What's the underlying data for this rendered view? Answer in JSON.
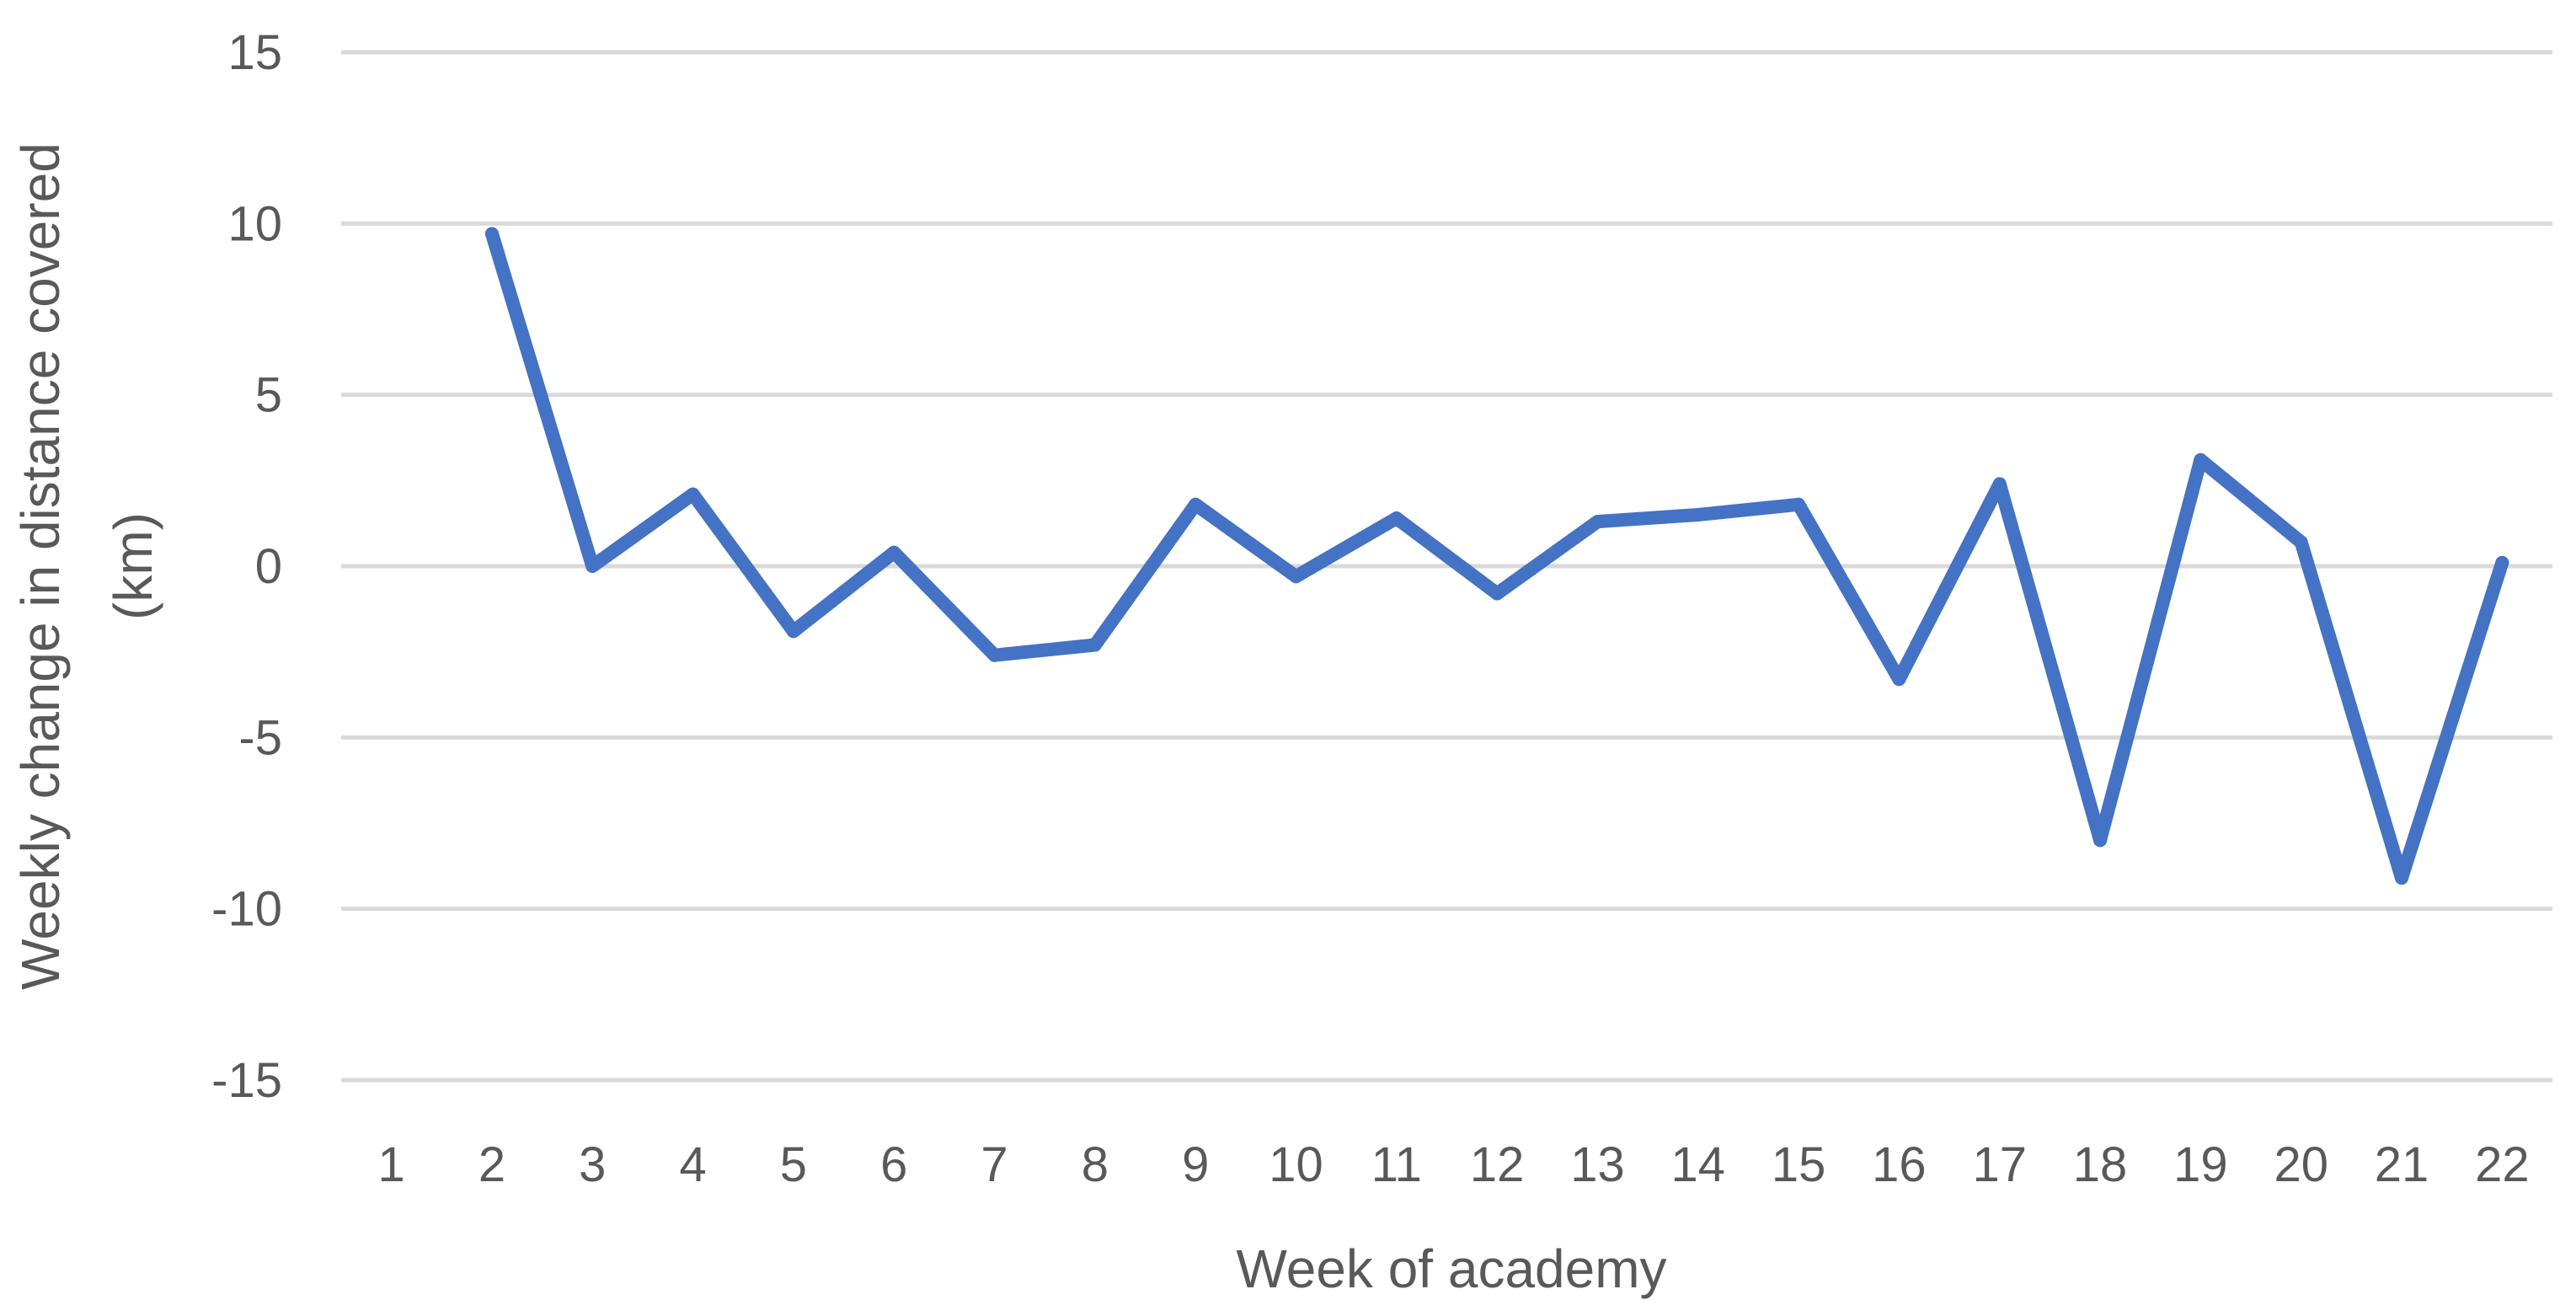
{
  "chart_data": {
    "type": "line",
    "title": "",
    "xlabel": "Week of academy",
    "ylabel_line1": "Weekly change in distance covered",
    "ylabel_line2": "(km)",
    "x": [
      "1",
      "2",
      "3",
      "4",
      "5",
      "6",
      "7",
      "8",
      "9",
      "10",
      "11",
      "12",
      "13",
      "14",
      "15",
      "16",
      "17",
      "18",
      "19",
      "20",
      "21",
      "22"
    ],
    "y_ticks": [
      15,
      10,
      5,
      0,
      -5,
      -10,
      -15
    ],
    "ylim": [
      -15,
      15
    ],
    "grid": true,
    "legend": "none",
    "series": [
      {
        "color": "#4472C4",
        "values": [
          null,
          9.7,
          0.0,
          2.1,
          -1.9,
          0.4,
          -2.6,
          -2.3,
          1.8,
          -0.3,
          1.4,
          -0.8,
          1.3,
          1.5,
          1.8,
          -3.3,
          2.4,
          -8.0,
          3.1,
          0.7,
          -9.1,
          0.1
        ]
      }
    ],
    "colors": {
      "line": "#4472C4",
      "grid": "#D9D9D9",
      "text": "#595959"
    }
  }
}
